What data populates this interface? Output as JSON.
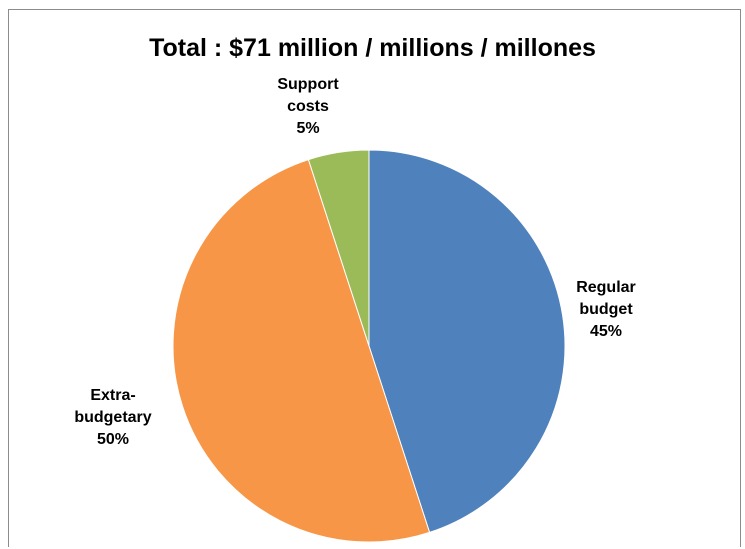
{
  "chart_data": {
    "type": "pie",
    "title": "Total : $71 million / millions / millones",
    "slices": [
      {
        "label": [
          "Regular",
          "budget",
          "45%"
        ],
        "value": 45,
        "color": "#4f81bd"
      },
      {
        "label": [
          "Extra-",
          "budgetary",
          "50%"
        ],
        "value": 50,
        "color": "#f79646"
      },
      {
        "label": [
          "Support",
          "costs",
          "5%"
        ],
        "value": 5,
        "color": "#9bbb59"
      }
    ],
    "legend": "none"
  }
}
